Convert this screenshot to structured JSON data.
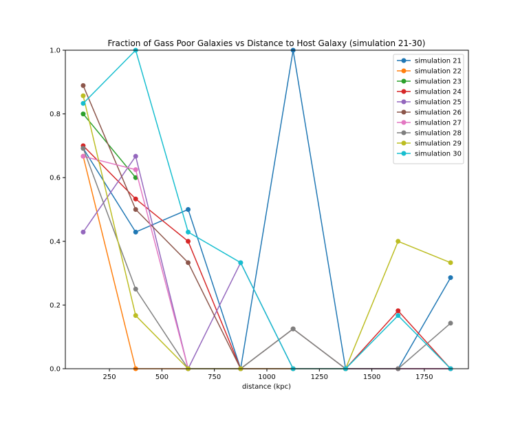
{
  "chart_data": {
    "type": "line",
    "title": "Fraction of Gass Poor Galaxies vs Distance to Host Galaxy (simulation 21-30)",
    "xlabel": "distance (kpc)",
    "ylabel": "",
    "xlim": [
      40,
      1960
    ],
    "ylim": [
      0,
      1.0
    ],
    "xticks": [
      250,
      500,
      750,
      1000,
      1250,
      1500,
      1750
    ],
    "xtick_labels": [
      "250",
      "500",
      "750",
      "1000",
      "1250",
      "1500",
      "1750"
    ],
    "yticks": [
      0,
      0.2,
      0.4,
      0.6,
      0.8,
      1.0
    ],
    "ytick_labels": [
      "0.0",
      "0.2",
      "0.4",
      "0.6",
      "0.8",
      "1.0"
    ],
    "grid": false,
    "legend_position": "top-right",
    "x": [
      125,
      375,
      625,
      875,
      1125,
      1375,
      1625,
      1875
    ],
    "series": [
      {
        "name": "simulation 21",
        "color": "#1f77b4",
        "values": [
          0.692,
          0.429,
          0.5,
          0.0,
          1.0,
          0.0,
          0.0,
          0.286
        ]
      },
      {
        "name": "simulation 22",
        "color": "#ff7f0e",
        "values": [
          0.667,
          0.0,
          0.0,
          null,
          null,
          null,
          null,
          null
        ]
      },
      {
        "name": "simulation 23",
        "color": "#2ca02c",
        "values": [
          0.8,
          0.6,
          null,
          null,
          null,
          null,
          null,
          null
        ]
      },
      {
        "name": "simulation 24",
        "color": "#d62728",
        "values": [
          0.7,
          0.533,
          0.4,
          0.0,
          0.0,
          0.0,
          0.182,
          0.0
        ]
      },
      {
        "name": "simulation 25",
        "color": "#9467bd",
        "values": [
          0.429,
          0.667,
          0.0,
          0.333,
          0.0,
          0.0,
          0.0,
          0.0
        ]
      },
      {
        "name": "simulation 26",
        "color": "#8c564b",
        "values": [
          0.889,
          0.5,
          0.333,
          0.0,
          0.125,
          0.0,
          0.0,
          0.0
        ]
      },
      {
        "name": "simulation 27",
        "color": "#e377c2",
        "values": [
          0.667,
          0.625,
          0.0,
          0.0,
          0.0,
          0.0,
          0.0,
          0.0
        ]
      },
      {
        "name": "simulation 28",
        "color": "#7f7f7f",
        "values": [
          0.692,
          0.25,
          0.0,
          0.0,
          0.125,
          0.0,
          0.0,
          0.143
        ]
      },
      {
        "name": "simulation 29",
        "color": "#bcbd22",
        "values": [
          0.857,
          0.167,
          0.0,
          0.0,
          0.0,
          0.0,
          0.4,
          0.333
        ]
      },
      {
        "name": "simulation 30",
        "color": "#17becf",
        "values": [
          0.833,
          1.0,
          0.429,
          0.333,
          0.0,
          0.0,
          0.167,
          0.0
        ]
      }
    ]
  }
}
